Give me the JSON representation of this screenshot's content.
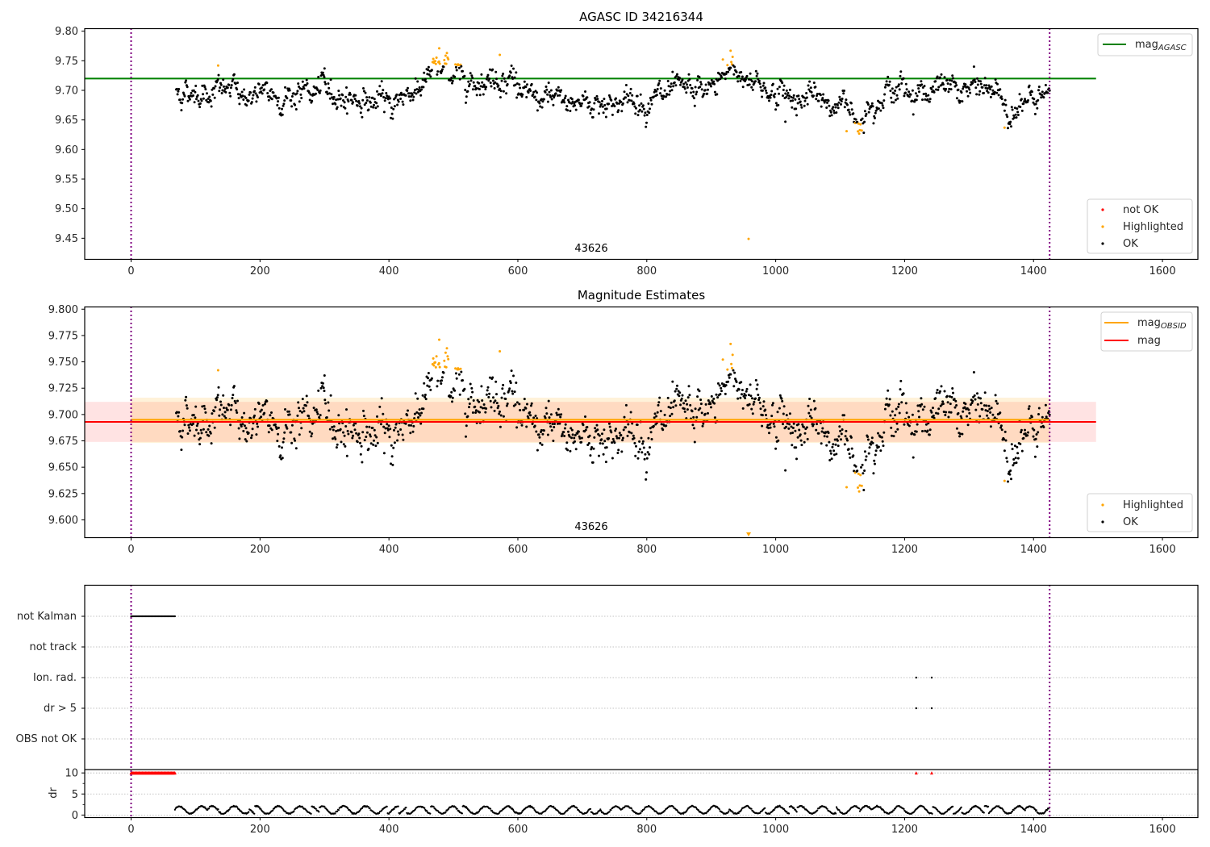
{
  "chart_data": [
    {
      "type": "scatter",
      "title": "AGASC ID 34216344",
      "xlim": [
        -72,
        1655
      ],
      "ylim": [
        9.415,
        9.805
      ],
      "xticks": [
        "0",
        "200",
        "400",
        "600",
        "800",
        "1000",
        "1200",
        "1400",
        "1600"
      ],
      "xtick_values": [
        0,
        200,
        400,
        600,
        800,
        1000,
        1200,
        1400,
        1600
      ],
      "yticks": [
        "9.45",
        "9.50",
        "9.55",
        "9.60",
        "9.65",
        "9.70",
        "9.75",
        "9.80"
      ],
      "ytick_values": [
        9.45,
        9.5,
        9.55,
        9.6,
        9.65,
        9.7,
        9.75,
        9.8
      ],
      "obsid_boundaries": [
        0,
        1425
      ],
      "obsid_label": "43626",
      "obsid_label_x": 713,
      "reference_line": {
        "name": "mag_AGASC",
        "label_main": "mag",
        "label_sub": "AGASC",
        "value": 9.72,
        "x_range": [
          -72,
          1497
        ],
        "color": "#008000"
      },
      "series_legend": [
        {
          "name": "not OK",
          "color": "#ff0000"
        },
        {
          "name": "Highlighted",
          "color": "#ffa500"
        },
        {
          "name": "OK",
          "color": "#000000"
        }
      ],
      "legend_position": [
        "upper-right",
        "lower-right"
      ]
    },
    {
      "type": "scatter",
      "title": "Magnitude Estimates",
      "xlim": [
        -72,
        1655
      ],
      "ylim": [
        9.5835,
        9.8025
      ],
      "xticks": [
        "0",
        "200",
        "400",
        "600",
        "800",
        "1000",
        "1200",
        "1400",
        "1600"
      ],
      "xtick_values": [
        0,
        200,
        400,
        600,
        800,
        1000,
        1200,
        1400,
        1600
      ],
      "yticks": [
        "9.600",
        "9.625",
        "9.650",
        "9.675",
        "9.700",
        "9.725",
        "9.750",
        "9.775",
        "9.800"
      ],
      "ytick_values": [
        9.6,
        9.625,
        9.65,
        9.675,
        9.7,
        9.725,
        9.75,
        9.775,
        9.8
      ],
      "obsid_boundaries": [
        0,
        1425
      ],
      "obsid_label": "43626",
      "obsid_label_x": 713,
      "mag_obsid": {
        "label_main": "mag",
        "label_sub": "OBSID",
        "value": 9.695,
        "band": [
          9.673,
          9.716
        ],
        "x_range": [
          0,
          1425
        ],
        "color": "#ffa500"
      },
      "mag": {
        "label": "mag",
        "value": 9.693,
        "band": [
          9.674,
          9.712
        ],
        "x_range": [
          -72,
          1497
        ],
        "color": "#ff0000"
      },
      "series_legend": [
        {
          "name": "Highlighted",
          "color": "#ffa500"
        },
        {
          "name": "OK",
          "color": "#000000"
        }
      ],
      "offscale_marker": {
        "x": 958,
        "color": "#ffa500"
      },
      "legend_position": [
        "upper-right",
        "lower-right"
      ]
    },
    {
      "type": "scatter",
      "title": "",
      "xlim": [
        -72,
        1655
      ],
      "flag_rows": [
        "not Kalman",
        "not track",
        "Ion. rad.",
        "dr > 5",
        "OBS not OK"
      ],
      "flag_events": [
        {
          "row": "not Kalman",
          "x_range": [
            0,
            68
          ]
        },
        {
          "row": "Ion. rad.",
          "x_points": [
            1218,
            1242
          ]
        },
        {
          "row": "dr > 5",
          "x_points": [
            1218,
            1242
          ]
        }
      ],
      "dr_panel": {
        "ylabel": "dr",
        "yticks": [
          "0",
          "5",
          "10"
        ],
        "ytick_values": [
          0,
          5,
          10
        ],
        "ylim": [
          -0.5,
          10.8
        ],
        "clipped_value": 10,
        "clipped_ranges": [
          [
            0,
            68
          ]
        ],
        "clipped_points": [
          1218,
          1242
        ],
        "typical_range": [
          0.3,
          2.5
        ],
        "x_range": [
          68,
          1425
        ]
      },
      "xticks": [
        "0",
        "200",
        "400",
        "600",
        "800",
        "1000",
        "1200",
        "1400",
        "1600"
      ],
      "xtick_values": [
        0,
        200,
        400,
        600,
        800,
        1000,
        1200,
        1400,
        1600
      ],
      "obsid_boundaries": [
        0,
        1425
      ]
    }
  ],
  "series_model": {
    "x_start": 70,
    "x_end": 1425,
    "n_points": 1340,
    "trend_knots_x": [
      70,
      150,
      200,
      300,
      400,
      460,
      480,
      530,
      590,
      620,
      700,
      800,
      900,
      930,
      960,
      1000,
      1100,
      1130,
      1160,
      1250,
      1340,
      1360,
      1425
    ],
    "trend_knots_y": [
      9.697,
      9.7,
      9.688,
      9.698,
      9.675,
      9.72,
      9.738,
      9.72,
      9.725,
      9.68,
      9.68,
      9.683,
      9.7,
      9.735,
      9.72,
      9.695,
      9.676,
      9.655,
      9.7,
      9.7,
      9.702,
      9.67,
      9.684
    ],
    "noise_sd": 0.011,
    "highlight_threshold_hi": 9.742,
    "highlight_threshold_lo": 9.645,
    "outliers": [
      {
        "x": 135,
        "y": 9.742,
        "kind": "Highlighted"
      },
      {
        "x": 958,
        "y": 9.449,
        "kind": "Highlighted"
      },
      {
        "x": 1355,
        "y": 9.637,
        "kind": "Highlighted"
      },
      {
        "x": 1110,
        "y": 9.631,
        "kind": "Highlighted"
      },
      {
        "x": 478,
        "y": 9.771,
        "kind": "Highlighted"
      },
      {
        "x": 930,
        "y": 9.767,
        "kind": "Highlighted"
      },
      {
        "x": 572,
        "y": 9.76,
        "kind": "Highlighted"
      },
      {
        "x": 300,
        "y": 9.737,
        "kind": "OK"
      },
      {
        "x": 1015,
        "y": 9.647,
        "kind": "OK"
      }
    ]
  }
}
